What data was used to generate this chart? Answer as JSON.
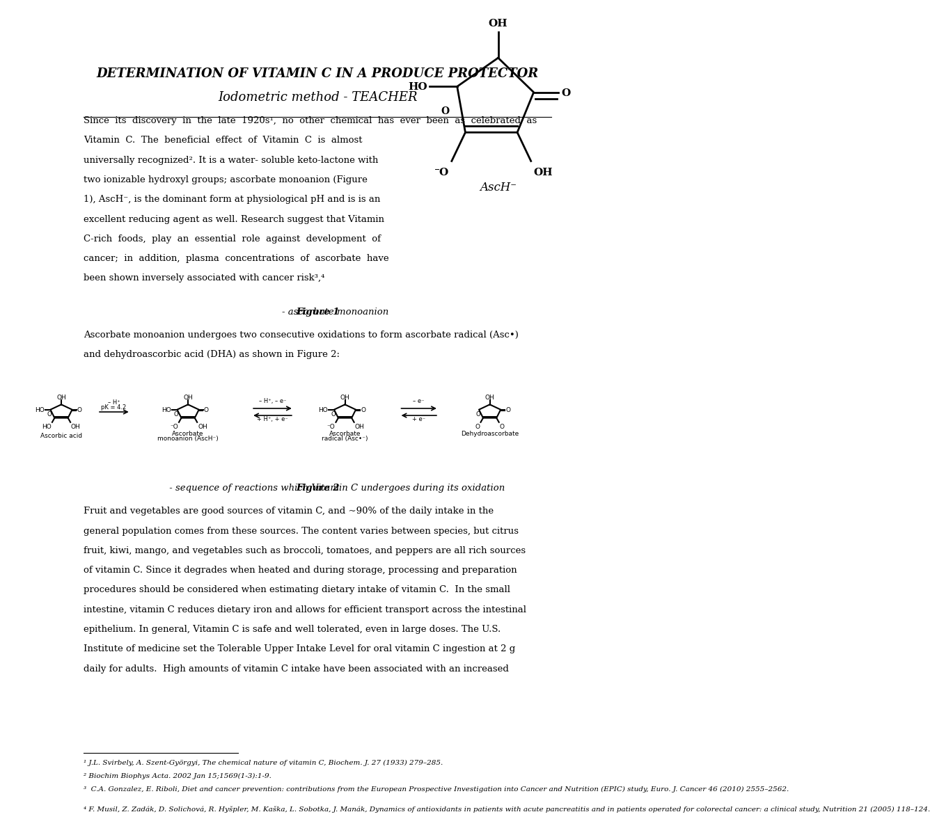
{
  "title_line1": "DETERMINATION OF VITAMIN C IN A PRODUCE PROTECTOR",
  "title_line2_normal": "Iodometric method - ",
  "title_line2_bold": "TEACHER",
  "bg_color": "#ffffff",
  "text_color": "#000000",
  "page_width": 10.2,
  "page_height": 14.42,
  "fig1_caption_bold": "Figure 1",
  "fig1_caption_rest": " - ascorbate monoanion",
  "fig2_caption_bold": "Figure 2",
  "fig2_caption_rest": " - sequence of reactions which Vitamin C undergoes during its oxidation",
  "p1_lines": [
    "Since  its  discovery  in  the  late  1920s¹,  no  other  chemical  has  ever  been  as  celebrated  as",
    "Vitamin  C.  The  beneficial  effect  of  Vitamin  C  is  almost",
    "universally recognized². It is a water- soluble keto-lactone with",
    "two ionizable hydroxyl groups; ascorbate monoanion (Figure",
    "1), AscH⁻, is the dominant form at physiological pH and is is an",
    "excellent reducing agent as well. Research suggest that Vitamin",
    "C-rich  foods,  play  an  essential  role  against  development  of",
    "cancer;  in  addition,  plasma  concentrations  of  ascorbate  have",
    "been shown inversely associated with cancer risk³,⁴"
  ],
  "p2_lines": [
    "Ascorbate monoanion undergoes two consecutive oxidations to form ascorbate radical (Asc•)",
    "and dehydroascorbic acid (DHA) as shown in Figure 2:"
  ],
  "p3_lines": [
    "Fruit and vegetables are good sources of vitamin C, and ~90% of the daily intake in the",
    "general population comes from these sources. The content varies between species, but citrus",
    "fruit, kiwi, mango, and vegetables such as broccoli, tomatoes, and peppers are all rich sources",
    "of vitamin C. Since it degrades when heated and during storage, processing and preparation",
    "procedures should be considered when estimating dietary intake of vitamin C.  In the small",
    "intestine, vitamin C reduces dietary iron and allows for efficient transport across the intestinal",
    "epithelium. In general, Vitamin C is safe and well tolerated, even in large doses. The U.S.",
    "Institute of medicine set the Tolerable Upper Intake Level for oral vitamin C ingestion at 2 g",
    "daily for adults.  High amounts of vitamin C intake have been associated with an increased"
  ],
  "footnote1": "¹ J.L. Svirbely, A. Szent-Györgyi, The chemical nature of vitamin C, Biochem. J. 27 (1933) 279–285.",
  "footnote2": "² Biochim Biophys Acta. 2002 Jan 15;1569(1-3):1-9.",
  "footnote3": "³  C.A. Gonzalez, E. Riboli, Diet and cancer prevention: contributions from the European Prospective Investigation into Cancer and Nutrition (EPIC) study, Euro. J. Cancer 46 (2010) 2555–2562.",
  "footnote4": "⁴ F. Musil, Z. Zadák, D. Solichová, R. Hyšpler, M. Kaška, L. Sobotka, J. Manák, Dynamics of antioxidants in patients with acute pancreatitis and in patients operated for colorectal cancer: a clinical study, Nutrition 21 (2005) 118–124."
}
